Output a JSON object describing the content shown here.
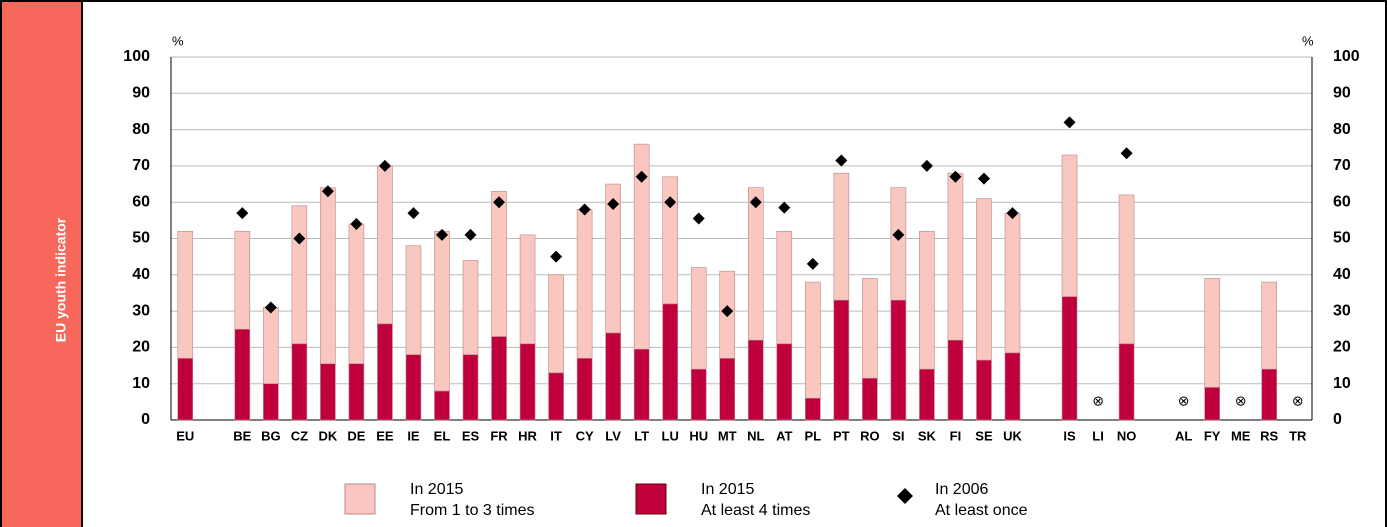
{
  "sidebar": {
    "label": "EU youth indicator"
  },
  "chart_data": {
    "type": "stacked_bar_with_markers",
    "y_unit_label": "%",
    "categories": [
      "EU",
      null,
      "BE",
      "BG",
      "CZ",
      "DK",
      "DE",
      "EE",
      "IE",
      "EL",
      "ES",
      "FR",
      "HR",
      "IT",
      "CY",
      "LV",
      "LT",
      "LU",
      "HU",
      "MT",
      "NL",
      "AT",
      "PL",
      "PT",
      "RO",
      "SI",
      "SK",
      "FI",
      "SE",
      "UK",
      null,
      "IS",
      "LI",
      "NO",
      null,
      "AL",
      "FY",
      "ME",
      "RS",
      "TR"
    ],
    "series": [
      {
        "name": "At least 4 times",
        "year_label": "In 2015",
        "color": "#c0003c",
        "kind": "bar",
        "values": [
          17,
          null,
          25,
          10,
          21,
          15.5,
          15.5,
          26.5,
          18,
          8,
          18,
          23,
          21,
          13,
          17,
          24,
          19.5,
          32,
          14,
          17,
          22,
          21,
          6,
          33,
          11.5,
          33,
          14,
          22,
          16.5,
          18.5,
          null,
          34,
          null,
          21,
          null,
          null,
          9,
          null,
          14,
          null
        ]
      },
      {
        "name": "From 1 to 3 times",
        "year_label": "In 2015",
        "color": "#f9c7bf",
        "kind": "bar",
        "values": [
          35,
          null,
          27,
          21,
          38,
          48.5,
          38.5,
          43.5,
          30,
          44,
          26,
          40,
          30,
          27,
          41,
          41,
          56.5,
          35,
          28,
          24,
          42,
          31,
          32,
          35,
          27.5,
          31,
          38,
          46,
          44.5,
          38.5,
          null,
          39,
          null,
          41,
          null,
          null,
          30,
          null,
          24,
          null
        ]
      },
      {
        "name": "At least once",
        "year_label": "In 2006",
        "color": "#000000",
        "kind": "marker",
        "values": [
          null,
          null,
          57,
          31,
          50,
          63,
          54,
          70,
          57,
          51,
          51,
          60,
          null,
          45,
          58,
          59.5,
          67,
          60,
          55.5,
          30,
          60,
          58.5,
          43,
          71.5,
          null,
          51,
          70,
          67,
          66.5,
          57,
          null,
          82,
          null,
          73.5,
          null,
          null,
          null,
          null,
          null,
          null
        ]
      }
    ],
    "legend_order": [
      1,
      0,
      2
    ],
    "na_symbol": "⊗",
    "ylim": [
      0,
      100
    ],
    "yticks": [
      0,
      10,
      20,
      30,
      40,
      50,
      60,
      70,
      80,
      90,
      100
    ],
    "grid": true
  }
}
